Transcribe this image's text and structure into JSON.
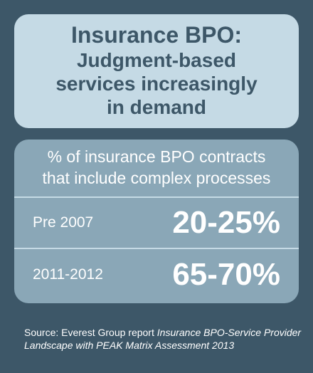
{
  "title": {
    "line1": "Insurance BPO:",
    "line2": "Judgment-based\nservices increasingly\nin demand"
  },
  "stats": {
    "header": "% of insurance BPO contracts\nthat include complex processes",
    "rows": [
      {
        "label": "Pre 2007",
        "value": "20-25%"
      },
      {
        "label": "2011-2012",
        "value": "65-70%"
      }
    ]
  },
  "source": {
    "prefix": "Source: Everest Group report ",
    "report_title": "Insurance BPO-Service Provider Landscape with PEAK Matrix Assessment 2013"
  },
  "colors": {
    "background": "#3d5768",
    "title_box": "#c5dae5",
    "stats_box": "#8aa7b7",
    "text_light": "#ffffff"
  }
}
